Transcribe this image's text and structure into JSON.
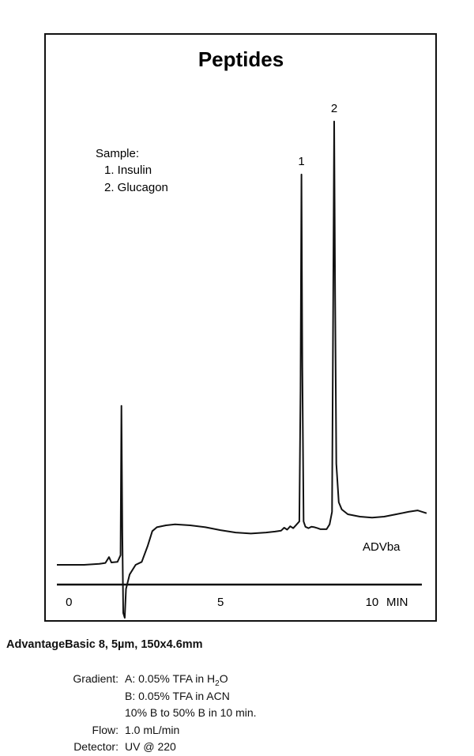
{
  "chart_data": {
    "type": "line",
    "title": "Peptides",
    "xlabel": "MIN",
    "xlim": [
      -0.4,
      11.8
    ],
    "ylim": [
      0,
      100
    ],
    "x_ticks": [
      {
        "value": 0,
        "label": "0"
      },
      {
        "value": 5,
        "label": "5"
      },
      {
        "value": 10,
        "label": "10"
      }
    ],
    "sample": {
      "heading": "Sample:",
      "items": [
        "1.  Insulin",
        "2.  Glucagon"
      ]
    },
    "peaks": [
      {
        "label": "1",
        "x": 7.67,
        "y": 85
      },
      {
        "label": "2",
        "x": 8.75,
        "y": 96
      }
    ],
    "trace_label": "ADVba",
    "series": [
      {
        "points": [
          [
            -0.4,
            4
          ],
          [
            0.5,
            4
          ],
          [
            1.0,
            4.2
          ],
          [
            1.2,
            4.4
          ],
          [
            1.32,
            5.6
          ],
          [
            1.4,
            4.5
          ],
          [
            1.6,
            4.6
          ],
          [
            1.7,
            6
          ],
          [
            1.73,
            37
          ],
          [
            1.76,
            10
          ],
          [
            1.79,
            -6
          ],
          [
            1.84,
            -7
          ],
          [
            1.88,
            -1
          ],
          [
            2.0,
            2
          ],
          [
            2.2,
            4
          ],
          [
            2.4,
            4.6
          ],
          [
            2.6,
            8
          ],
          [
            2.75,
            11
          ],
          [
            2.9,
            11.8
          ],
          [
            3.2,
            12.2
          ],
          [
            3.5,
            12.4
          ],
          [
            4.0,
            12.2
          ],
          [
            4.5,
            11.8
          ],
          [
            5.0,
            11.2
          ],
          [
            5.5,
            10.7
          ],
          [
            6.0,
            10.5
          ],
          [
            6.5,
            10.7
          ],
          [
            6.8,
            10.9
          ],
          [
            7.0,
            11.1
          ],
          [
            7.1,
            11.7
          ],
          [
            7.2,
            11.3
          ],
          [
            7.3,
            12
          ],
          [
            7.4,
            11.6
          ],
          [
            7.5,
            12.3
          ],
          [
            7.6,
            13
          ],
          [
            7.64,
            40
          ],
          [
            7.67,
            85
          ],
          [
            7.7,
            45
          ],
          [
            7.74,
            13
          ],
          [
            7.8,
            11.9
          ],
          [
            7.9,
            11.6
          ],
          [
            8.0,
            11.9
          ],
          [
            8.1,
            11.8
          ],
          [
            8.2,
            11.6
          ],
          [
            8.3,
            11.4
          ],
          [
            8.5,
            11.4
          ],
          [
            8.6,
            12.4
          ],
          [
            8.68,
            15
          ],
          [
            8.72,
            60
          ],
          [
            8.75,
            96
          ],
          [
            8.78,
            60
          ],
          [
            8.82,
            25
          ],
          [
            8.9,
            17
          ],
          [
            9.0,
            15.5
          ],
          [
            9.2,
            14.5
          ],
          [
            9.6,
            14.0
          ],
          [
            10.0,
            13.8
          ],
          [
            10.4,
            14.0
          ],
          [
            10.8,
            14.5
          ],
          [
            11.2,
            15.0
          ],
          [
            11.5,
            15.3
          ],
          [
            11.8,
            14.7
          ]
        ]
      }
    ]
  },
  "column_info": "AdvantageBasic 8,  5µm,  150x4.6mm",
  "conditions": [
    {
      "key": "Gradient:",
      "value": "A:  0.05% TFA in H2O"
    },
    {
      "key": "",
      "value": "B:  0.05% TFA in ACN"
    },
    {
      "key": "",
      "value": "10% B to 50% B in 10 min."
    },
    {
      "key": "Flow:",
      "value": "1.0 mL/min"
    },
    {
      "key": "Detector:",
      "value": "UV @ 220"
    }
  ],
  "colors": {
    "line": "#111111",
    "background": "#ffffff"
  }
}
